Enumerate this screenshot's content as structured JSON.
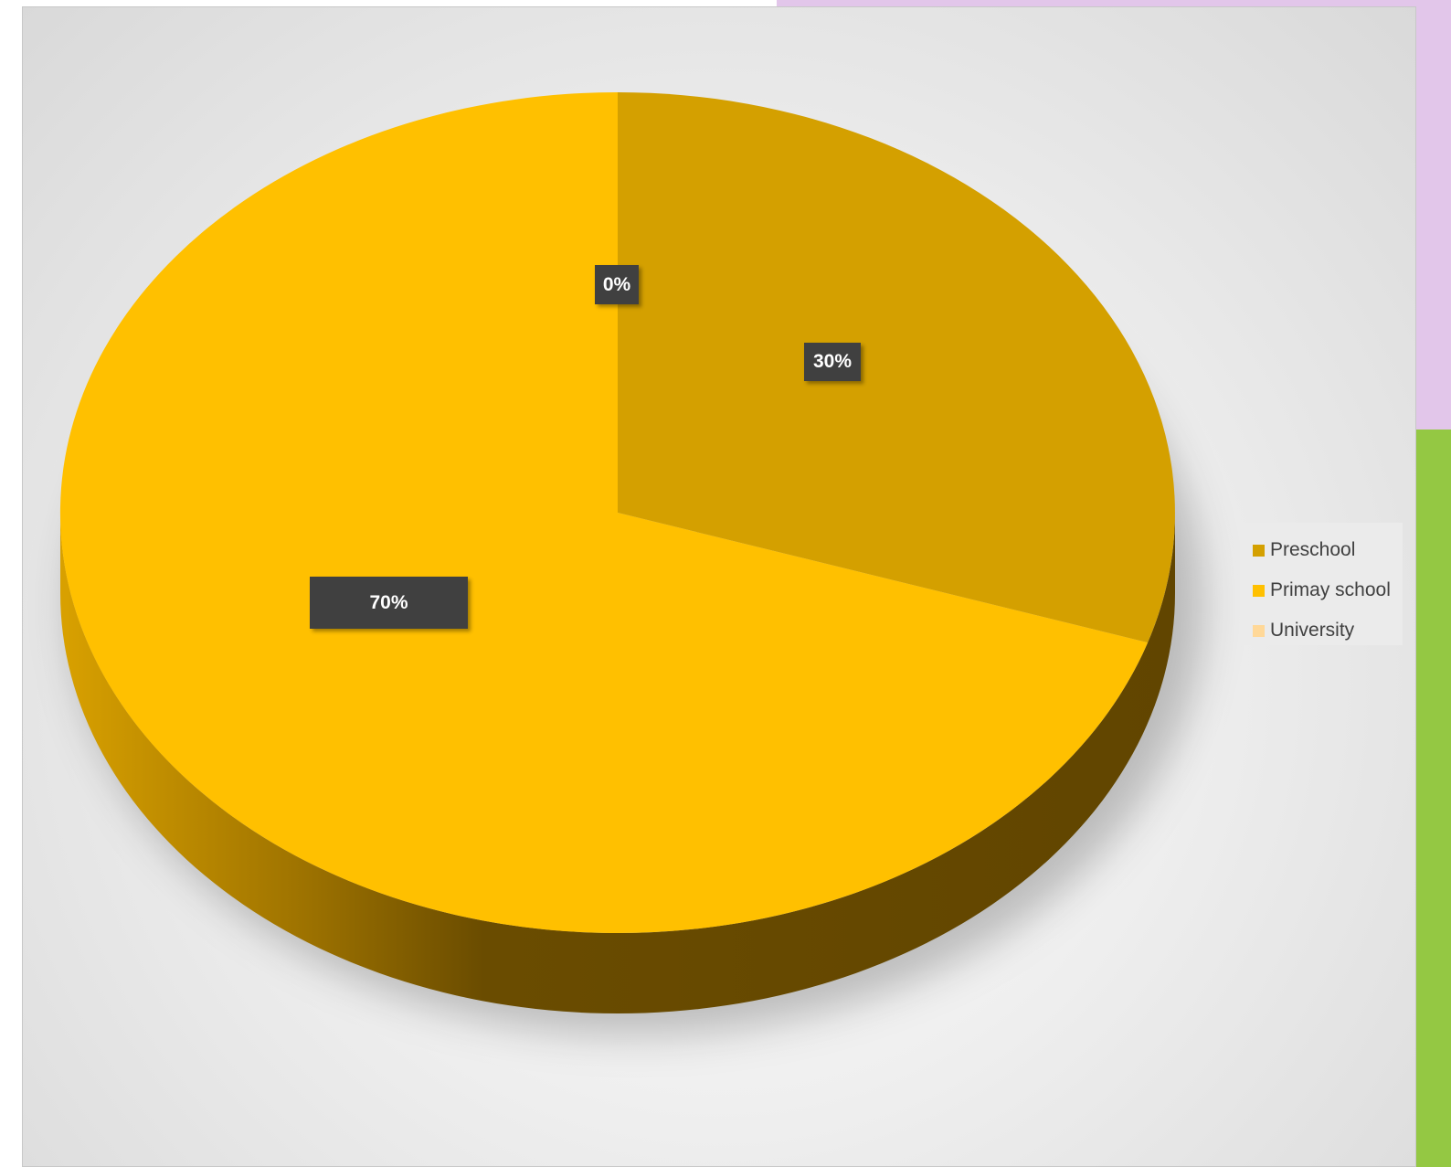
{
  "chart_data": {
    "type": "pie",
    "style": "3d",
    "categories": [
      "Preschool",
      "Primay school",
      "University"
    ],
    "values": [
      30,
      70,
      0
    ],
    "labels": [
      "30%",
      "70%",
      "0%"
    ],
    "colors": [
      "#d4a000",
      "#ffc000",
      "#ffd898"
    ],
    "title": "",
    "legend_position": "right"
  },
  "legend": {
    "items": [
      {
        "label": "Preschool",
        "color": "#d4a000"
      },
      {
        "label": "Primay school",
        "color": "#ffc000"
      },
      {
        "label": "University",
        "color": "#ffd898"
      }
    ]
  }
}
